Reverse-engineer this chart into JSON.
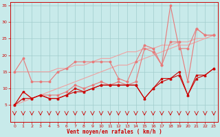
{
  "x": [
    0,
    1,
    2,
    3,
    4,
    5,
    6,
    7,
    8,
    9,
    10,
    11,
    12,
    13,
    14,
    15,
    16,
    17,
    18,
    19,
    20,
    21,
    22,
    23
  ],
  "rafales_high": [
    15,
    19,
    12,
    12,
    12,
    15,
    16,
    18,
    18,
    18,
    18,
    18,
    13,
    12,
    18,
    23,
    22,
    17,
    35,
    22,
    22,
    28,
    26,
    26
  ],
  "rafales_mid": [
    5,
    9,
    7,
    8,
    8,
    8,
    9,
    11,
    10,
    11,
    12,
    11,
    12,
    11,
    12,
    22,
    21,
    17,
    24,
    24,
    12,
    28,
    26,
    26
  ],
  "vent_moy1": [
    5,
    9,
    7,
    8,
    7,
    7,
    8,
    10,
    9,
    10,
    11,
    11,
    11,
    11,
    11,
    7,
    10,
    13,
    13,
    15,
    8,
    14,
    14,
    16
  ],
  "vent_moy2": [
    5,
    7,
    7,
    8,
    7,
    7,
    8,
    9,
    9,
    10,
    11,
    11,
    11,
    11,
    11,
    7,
    10,
    12,
    13,
    14,
    8,
    13,
    14,
    16
  ],
  "trend1": [
    5,
    6,
    7,
    8,
    9,
    10,
    11,
    12,
    13,
    14,
    15,
    16,
    17,
    17,
    18,
    19,
    20,
    21,
    22,
    23,
    23,
    24,
    25,
    26
  ],
  "trend2": [
    15,
    15,
    15,
    15,
    15,
    16,
    16,
    17,
    17,
    18,
    19,
    19,
    20,
    21,
    21,
    22,
    22,
    23,
    23,
    24,
    24,
    25,
    25,
    26
  ],
  "wind_arrows": [
    1,
    1,
    1,
    1,
    1,
    1,
    1,
    1,
    1,
    1,
    1,
    1,
    1,
    1,
    1,
    1,
    1,
    1,
    1,
    1,
    1,
    1,
    1,
    1
  ],
  "color_light_pink": "#f0a0a0",
  "color_medium_pink": "#e87878",
  "color_dark_red": "#cc0000",
  "bg_color": "#c8eaea",
  "grid_color": "#a0cccc",
  "xlabel": "Vent moyen/en rafales ( km/h )",
  "ylim": [
    0,
    36
  ],
  "xlim": [
    -0.5,
    23.5
  ],
  "yticks": [
    5,
    10,
    15,
    20,
    25,
    30,
    35
  ],
  "xticks": [
    0,
    1,
    2,
    3,
    4,
    5,
    6,
    7,
    8,
    9,
    10,
    11,
    12,
    13,
    14,
    15,
    16,
    17,
    18,
    19,
    20,
    21,
    22,
    23
  ]
}
